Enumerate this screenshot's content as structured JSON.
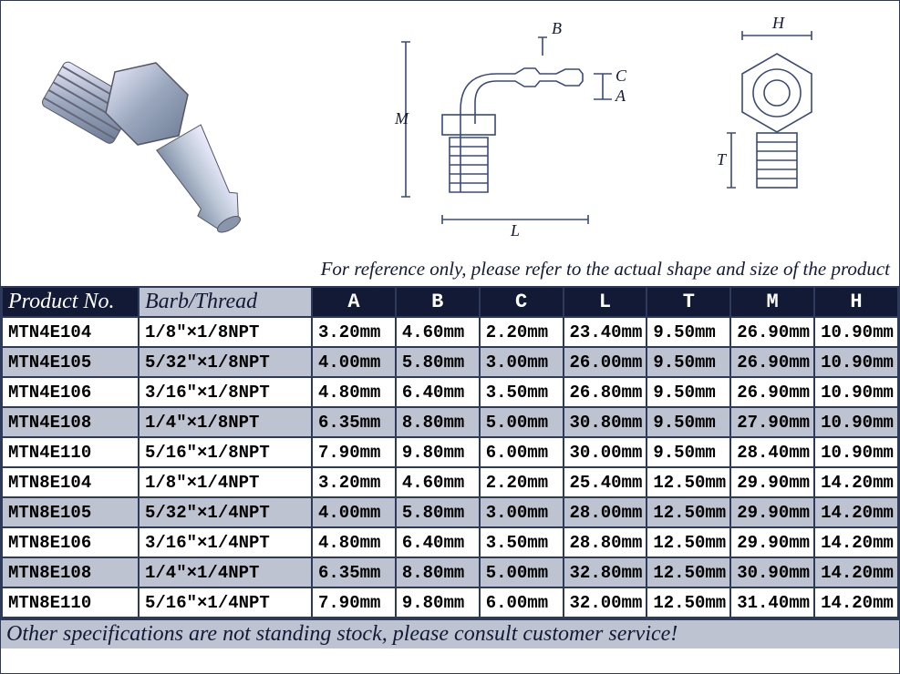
{
  "note_text": "For reference only, please refer to the actual shape and size of the product",
  "footer_text": "Other specifications are not standing stock, please consult customer service!",
  "headers": {
    "product": "Product No.",
    "barb": "Barb/Thread",
    "dims": [
      "A",
      "B",
      "C",
      "L",
      "T",
      "M",
      "H"
    ]
  },
  "rows": [
    {
      "alt": false,
      "pn": "MTN4E104",
      "bt": "1/8\"×1/8NPT",
      "d": [
        "3.20mm",
        "4.60mm",
        "2.20mm",
        "23.40mm",
        "9.50mm",
        "26.90mm",
        "10.90mm"
      ]
    },
    {
      "alt": true,
      "pn": "MTN4E105",
      "bt": "5/32\"×1/8NPT",
      "d": [
        "4.00mm",
        "5.80mm",
        "3.00mm",
        "26.00mm",
        "9.50mm",
        "26.90mm",
        "10.90mm"
      ]
    },
    {
      "alt": false,
      "pn": "MTN4E106",
      "bt": "3/16\"×1/8NPT",
      "d": [
        "4.80mm",
        "6.40mm",
        "3.50mm",
        "26.80mm",
        "9.50mm",
        "26.90mm",
        "10.90mm"
      ]
    },
    {
      "alt": true,
      "pn": "MTN4E108",
      "bt": "1/4\"×1/8NPT",
      "d": [
        "6.35mm",
        "8.80mm",
        "5.00mm",
        "30.80mm",
        "9.50mm",
        "27.90mm",
        "10.90mm"
      ]
    },
    {
      "alt": false,
      "pn": "MTN4E110",
      "bt": "5/16\"×1/8NPT",
      "d": [
        "7.90mm",
        "9.80mm",
        "6.00mm",
        "30.00mm",
        "9.50mm",
        "28.40mm",
        "10.90mm"
      ]
    },
    {
      "alt": false,
      "pn": "MTN8E104",
      "bt": "1/8\"×1/4NPT",
      "d": [
        "3.20mm",
        "4.60mm",
        "2.20mm",
        "25.40mm",
        "12.50mm",
        "29.90mm",
        "14.20mm"
      ]
    },
    {
      "alt": true,
      "pn": "MTN8E105",
      "bt": "5/32\"×1/4NPT",
      "d": [
        "4.00mm",
        "5.80mm",
        "3.00mm",
        "28.00mm",
        "12.50mm",
        "29.90mm",
        "14.20mm"
      ]
    },
    {
      "alt": false,
      "pn": "MTN8E106",
      "bt": "3/16\"×1/4NPT",
      "d": [
        "4.80mm",
        "6.40mm",
        "3.50mm",
        "28.80mm",
        "12.50mm",
        "29.90mm",
        "14.20mm"
      ]
    },
    {
      "alt": true,
      "pn": "MTN8E108",
      "bt": "1/4\"×1/4NPT",
      "d": [
        "6.35mm",
        "8.80mm",
        "5.00mm",
        "32.80mm",
        "12.50mm",
        "30.90mm",
        "14.20mm"
      ]
    },
    {
      "alt": false,
      "pn": "MTN8E110",
      "bt": "5/16\"×1/4NPT",
      "d": [
        "7.90mm",
        "9.80mm",
        "6.00mm",
        "32.00mm",
        "12.50mm",
        "31.40mm",
        "14.20mm"
      ]
    }
  ],
  "diagram": {
    "stroke": "#3a4a7a",
    "label_color": "#121a36",
    "font": "italic 18px Georgia"
  }
}
